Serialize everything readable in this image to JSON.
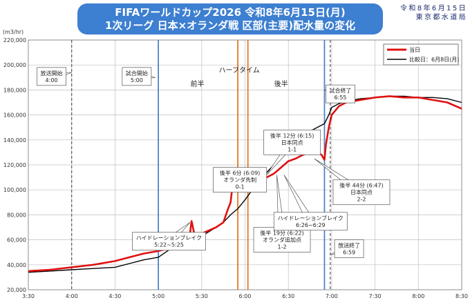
{
  "title": {
    "line1": "FIFAワールドカップ2026 令和8年6月15日(月)",
    "line2": "1次リーグ 日本×オランダ戦 区部(主要)配水量の変化"
  },
  "issuer": {
    "line1": "令和8年6月15日",
    "line2": "東京都水道局"
  },
  "colors": {
    "today": "#e01010",
    "compare": "#000000",
    "title_bg": "#3d7fd0",
    "line_blue": "#4a86c6",
    "line_orange": "#e07820",
    "grid": "#bfbfbf"
  },
  "chart_data": {
    "type": "line",
    "ylabel": "(m3/hr)",
    "ylim": [
      20000,
      220000
    ],
    "yticks": [
      20000,
      40000,
      60000,
      80000,
      100000,
      120000,
      140000,
      160000,
      180000,
      200000,
      220000
    ],
    "ytick_labels": [
      "20,000",
      "40,000",
      "60,000",
      "80,000",
      "100,000",
      "120,000",
      "140,000",
      "160,000",
      "180,000",
      "200,000",
      "220,000"
    ],
    "xlim": [
      "3:30",
      "8:30"
    ],
    "xtick_labels": [
      "3:30",
      "4:00",
      "4:30",
      "5:00",
      "5:30",
      "6:00",
      "6:30",
      "7:00",
      "7:30",
      "8:00",
      "8:30"
    ],
    "grid": true,
    "legend_position": "top-right",
    "series": [
      {
        "name": "当日",
        "color": "#e01010",
        "x": [
          "3:30",
          "3:45",
          "4:00",
          "4:15",
          "4:30",
          "4:40",
          "4:50",
          "5:00",
          "5:10",
          "5:15",
          "5:20",
          "5:22",
          "5:23",
          "5:25",
          "5:30",
          "5:40",
          "5:45",
          "5:48",
          "5:50",
          "5:52",
          "5:55",
          "5:57",
          "6:00",
          "6:05",
          "6:09",
          "6:12",
          "6:15",
          "6:20",
          "6:22",
          "6:25",
          "6:30",
          "6:35",
          "6:40",
          "6:45",
          "6:50",
          "6:53",
          "6:55",
          "6:56",
          "6:58",
          "7:00",
          "7:05",
          "7:10",
          "7:20",
          "7:30",
          "7:40",
          "7:50",
          "8:00",
          "8:10",
          "8:20",
          "8:30"
        ],
        "y": [
          35000,
          36000,
          38000,
          40000,
          43000,
          46000,
          49000,
          51000,
          54000,
          58000,
          60000,
          66000,
          75000,
          64000,
          65000,
          70000,
          74000,
          84000,
          90000,
          110000,
          112000,
          104000,
          108000,
          103000,
          107000,
          108000,
          110000,
          113000,
          115000,
          118000,
          123000,
          125000,
          128000,
          130000,
          130000,
          128000,
          124000,
          136000,
          150000,
          160000,
          167000,
          170000,
          172000,
          174000,
          175000,
          174000,
          174000,
          172000,
          170000,
          165000
        ]
      },
      {
        "name": "比較日：6月8日(月)",
        "color": "#000000",
        "x": [
          "3:30",
          "3:45",
          "4:00",
          "4:15",
          "4:30",
          "4:40",
          "4:50",
          "5:00",
          "5:05",
          "5:10",
          "5:20",
          "5:30",
          "5:40",
          "5:45",
          "5:50",
          "5:55",
          "6:00",
          "6:05",
          "6:10",
          "6:15",
          "6:20",
          "6:25",
          "6:30",
          "6:35",
          "6:40",
          "6:45",
          "6:50",
          "6:55",
          "6:58",
          "7:00",
          "7:05",
          "7:10",
          "7:20",
          "7:30",
          "7:40",
          "7:50",
          "8:00",
          "8:10",
          "8:20",
          "8:30"
        ],
        "y": [
          34000,
          35000,
          36000,
          37000,
          38000,
          41000,
          44000,
          46000,
          50000,
          54000,
          58000,
          63000,
          70000,
          74000,
          80000,
          85000,
          92000,
          100000,
          106000,
          114000,
          120000,
          126000,
          133000,
          138000,
          143000,
          147000,
          150000,
          153000,
          160000,
          166000,
          169000,
          171000,
          173000,
          174000,
          175000,
          175000,
          174000,
          174000,
          173000,
          170000
        ]
      }
    ],
    "vlines": [
      {
        "time": "4:00",
        "style": "dashed",
        "color": "#555555"
      },
      {
        "time": "5:00",
        "style": "solid",
        "color": "#4a86c6"
      },
      {
        "time": "5:55",
        "style": "solid",
        "color": "#e07820"
      },
      {
        "time": "6:02",
        "style": "solid",
        "color": "#e07820"
      },
      {
        "time": "6:55",
        "style": "solid",
        "color": "#4a86c6"
      },
      {
        "time": "6:59",
        "style": "dashed",
        "color": "#555555"
      }
    ],
    "period_labels": [
      {
        "text": "前半",
        "time": "5:27",
        "value": 183000
      },
      {
        "text": "ハーフタイム",
        "time": "5:56",
        "value": 194000
      },
      {
        "text": "後半",
        "time": "6:25",
        "value": 183000
      }
    ],
    "annotations": [
      {
        "lines": [
          "放送開始",
          "4:00"
        ],
        "time": "3:36",
        "value": 198000,
        "tail": [
          "4:00",
          194000
        ]
      },
      {
        "lines": [
          "試合開始",
          "5:00"
        ],
        "time": "4:35",
        "value": 198000,
        "tail": [
          "4:58",
          190000
        ]
      },
      {
        "lines": [
          "ハイドレーションブレイク",
          "5:22~5:25"
        ],
        "time": "4:42",
        "value": 66000,
        "tail": [
          "5:22",
          74000
        ]
      },
      {
        "lines": [
          "後半 6分 (6:09)",
          "オランダ先制",
          "0-1"
        ],
        "time": "5:38",
        "value": 118000,
        "tail": [
          "6:09",
          108000
        ]
      },
      {
        "lines": [
          "後半 12分 (6:15)",
          "日本同点",
          "1-1"
        ],
        "time": "6:13",
        "value": 148000,
        "tail": [
          "6:15",
          112000
        ]
      },
      {
        "lines": [
          "後半 19分 (6:22)",
          "オランダ追加点",
          "1-2"
        ],
        "time": "6:06",
        "value": 70000,
        "tail": [
          "6:22",
          112000
        ]
      },
      {
        "lines": [
          "ハイドレーションブレイク",
          "6:26~6:29"
        ],
        "time": "6:20",
        "value": 82000,
        "tail": [
          "6:27",
          112000
        ]
      },
      {
        "lines": [
          "後半 44分 (6:47)",
          "日本同点",
          "2-2"
        ],
        "time": "7:01",
        "value": 108000,
        "tail": [
          "6:48",
          125000
        ]
      },
      {
        "lines": [
          "試合終了",
          "6:55"
        ],
        "time": "6:56",
        "value": 184000,
        "tail": [
          "6:55",
          180000
        ]
      },
      {
        "lines": [
          "放送終了",
          "6:59"
        ],
        "time": "7:02",
        "value": 60000,
        "tail": [
          "6:59",
          48000
        ]
      }
    ]
  }
}
